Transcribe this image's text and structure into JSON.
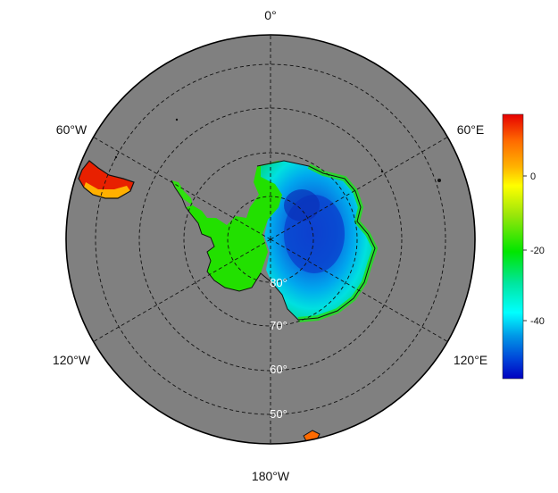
{
  "map": {
    "projection": "south polar stereographic",
    "ocean_color": "#808080",
    "longitude_labels": [
      "0°",
      "60°E",
      "120°E",
      "180°W",
      "120°W",
      "60°W"
    ],
    "latitude_labels": [
      "80°",
      "70°",
      "60°",
      "50°"
    ]
  },
  "colorbar": {
    "ticks": [
      "0",
      "-20",
      "-40"
    ],
    "colors": [
      "#e60000",
      "#ff6a00",
      "#ffb400",
      "#ffff00",
      "#9be60a",
      "#00e600",
      "#00e6a0",
      "#00ffff",
      "#0096e6",
      "#0040d8",
      "#0000c0"
    ]
  }
}
